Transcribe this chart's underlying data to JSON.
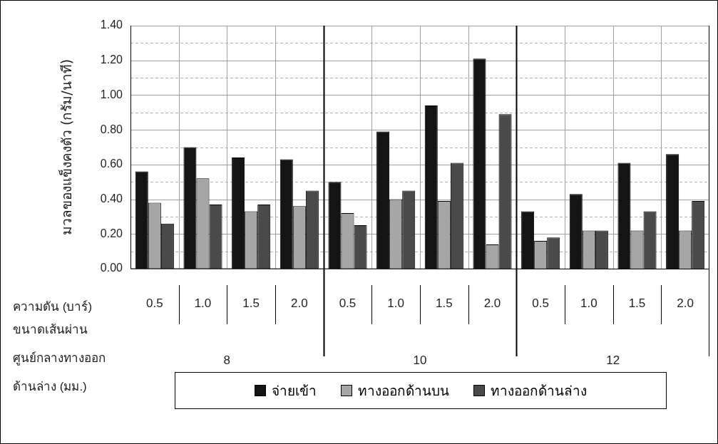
{
  "chart_data": {
    "type": "bar",
    "ylabel": "มวลของแข็งคงตัว (กรัม/นาที)",
    "xlabel": "ความดัน (บาร์)",
    "categories": [
      "0.5",
      "1.0",
      "1.5",
      "2.0",
      "0.5",
      "1.0",
      "1.5",
      "2.0",
      "0.5",
      "1.0",
      "1.5",
      "2.0"
    ],
    "series": [
      {
        "name": "จ่ายเข้า",
        "color": "#141414",
        "values": [
          0.56,
          0.7,
          0.64,
          0.63,
          0.5,
          0.79,
          0.94,
          1.21,
          0.33,
          0.43,
          0.61,
          0.66
        ]
      },
      {
        "name": "ทางออกด้านบน",
        "color": "#a6a6a6",
        "values": [
          0.38,
          0.52,
          0.33,
          0.36,
          0.32,
          0.4,
          0.39,
          0.14,
          0.16,
          0.22,
          0.22,
          0.22
        ]
      },
      {
        "name": "ทางออกด้านล่าง",
        "color": "#4a4a4a",
        "values": [
          0.26,
          0.37,
          0.37,
          0.45,
          0.25,
          0.45,
          0.61,
          0.89,
          0.18,
          0.22,
          0.33,
          0.39
        ]
      }
    ],
    "annotations": [
      "ขนาดเส้นผ่านศูนย์กลางทางออกด้านล่าง (มม.)",
      "8",
      "10",
      "12"
    ],
    "ylim": [
      0,
      1.4
    ],
    "yticks": [
      {
        "value": 0,
        "label": "0.00"
      },
      {
        "value": 0.1,
        "label": null
      },
      {
        "value": 0.2,
        "label": "0.20"
      },
      {
        "value": 0.3,
        "label": null
      },
      {
        "value": 0.4,
        "label": "0.40"
      },
      {
        "value": 0.5,
        "label": null
      },
      {
        "value": 0.6,
        "label": "0.60"
      },
      {
        "value": 0.7,
        "label": null
      },
      {
        "value": 0.8,
        "label": "0.80"
      },
      {
        "value": 0.9,
        "label": null
      },
      {
        "value": 1.0,
        "label": "1.00"
      },
      {
        "value": 1.1,
        "label": null
      },
      {
        "value": 1.2,
        "label": "1.20"
      },
      {
        "value": 1.3,
        "label": null
      },
      {
        "value": 1.4,
        "label": "1.40"
      }
    ],
    "grid": true,
    "legend": "bottom"
  }
}
